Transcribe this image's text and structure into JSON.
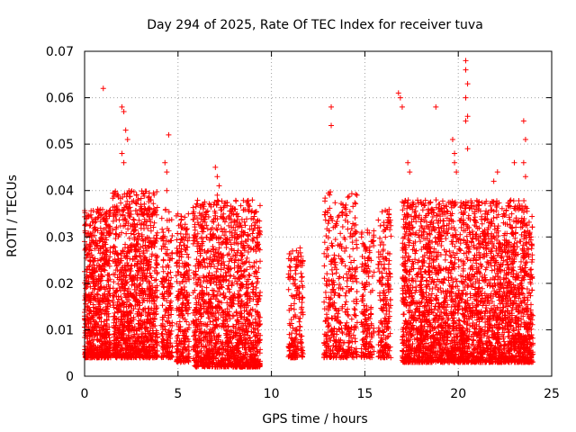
{
  "chart_data": {
    "type": "scatter",
    "title": "Day 294 of 2025, Rate Of TEC Index for receiver tuva",
    "xlabel": "GPS time / hours",
    "ylabel": "ROTI / TECUs",
    "xlim": [
      0,
      25
    ],
    "ylim": [
      0,
      0.07
    ],
    "xticks": [
      0,
      5,
      10,
      15,
      20,
      25
    ],
    "yticks": [
      0,
      0.01,
      0.02,
      0.03,
      0.04,
      0.05,
      0.06,
      0.07
    ],
    "xtick_labels": [
      "0",
      "5",
      "10",
      "15",
      "20",
      "25"
    ],
    "ytick_labels": [
      "0",
      "0.01",
      "0.02",
      "0.03",
      "0.04",
      "0.05",
      "0.06",
      "0.07"
    ],
    "grid": true,
    "marker": "+",
    "color": "#ff0000",
    "series": [
      {
        "clusters": [
          {
            "x": [
              0.0,
              1.4
            ],
            "y": [
              0.004,
              0.036
            ],
            "n": 700
          },
          {
            "x": [
              1.5,
              3.9
            ],
            "y": [
              0.004,
              0.04
            ],
            "n": 1100
          },
          {
            "x": [
              4.1,
              4.7
            ],
            "y": [
              0.004,
              0.036
            ],
            "n": 200
          },
          {
            "x": [
              4.9,
              5.6
            ],
            "y": [
              0.003,
              0.035
            ],
            "n": 260
          },
          {
            "x": [
              5.8,
              9.4
            ],
            "y": [
              0.002,
              0.038
            ],
            "n": 1500
          },
          {
            "x": [
              10.9,
              11.7
            ],
            "y": [
              0.004,
              0.028
            ],
            "n": 180
          },
          {
            "x": [
              12.8,
              14.6
            ],
            "y": [
              0.004,
              0.04
            ],
            "n": 420
          },
          {
            "x": [
              14.8,
              15.5
            ],
            "y": [
              0.004,
              0.032
            ],
            "n": 160
          },
          {
            "x": [
              15.7,
              16.4
            ],
            "y": [
              0.004,
              0.036
            ],
            "n": 200
          },
          {
            "x": [
              17.0,
              24.0
            ],
            "y": [
              0.003,
              0.038
            ],
            "n": 3000
          }
        ],
        "outliers": [
          [
            1.0,
            0.062
          ],
          [
            2.0,
            0.058
          ],
          [
            2.1,
            0.057
          ],
          [
            2.2,
            0.053
          ],
          [
            2.3,
            0.051
          ],
          [
            2.0,
            0.048
          ],
          [
            2.1,
            0.046
          ],
          [
            4.3,
            0.046
          ],
          [
            4.4,
            0.044
          ],
          [
            4.5,
            0.052
          ],
          [
            4.4,
            0.04
          ],
          [
            7.0,
            0.045
          ],
          [
            7.1,
            0.043
          ],
          [
            7.2,
            0.041
          ],
          [
            7.1,
            0.039
          ],
          [
            13.2,
            0.058
          ],
          [
            13.2,
            0.054
          ],
          [
            16.8,
            0.061
          ],
          [
            16.9,
            0.06
          ],
          [
            17.0,
            0.058
          ],
          [
            17.3,
            0.046
          ],
          [
            17.4,
            0.044
          ],
          [
            18.8,
            0.058
          ],
          [
            19.7,
            0.051
          ],
          [
            19.8,
            0.048
          ],
          [
            19.8,
            0.046
          ],
          [
            19.9,
            0.044
          ],
          [
            20.4,
            0.068
          ],
          [
            20.4,
            0.066
          ],
          [
            20.5,
            0.063
          ],
          [
            20.4,
            0.06
          ],
          [
            20.5,
            0.056
          ],
          [
            20.4,
            0.055
          ],
          [
            20.5,
            0.049
          ],
          [
            23.0,
            0.046
          ],
          [
            23.5,
            0.055
          ],
          [
            23.6,
            0.051
          ],
          [
            23.5,
            0.046
          ],
          [
            23.6,
            0.043
          ],
          [
            0.7,
            0.036
          ],
          [
            22.1,
            0.044
          ],
          [
            21.9,
            0.042
          ]
        ]
      }
    ]
  }
}
